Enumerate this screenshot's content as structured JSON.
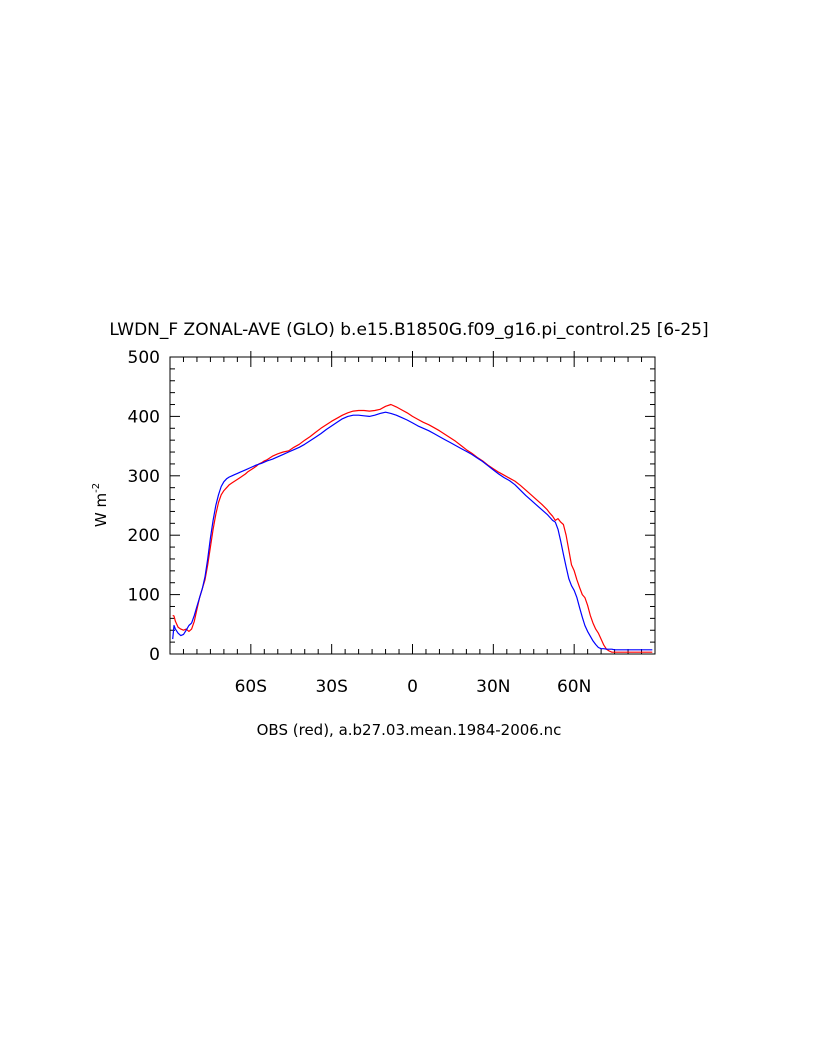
{
  "chart_data": {
    "type": "line",
    "title": "LWDN_F ZONAL-AVE (GLO) b.e15.B1850G.f09_g16.pi_control.25 [6-25]",
    "xlabel": "OBS (red), a.b27.03.mean.1984-2006.nc",
    "ylabel": "W m",
    "ylabel_sup": "-2",
    "xlim": [
      -90,
      90
    ],
    "ylim": [
      0,
      500
    ],
    "xticks": [
      {
        "value": -60,
        "label": "60S"
      },
      {
        "value": -30,
        "label": "30S"
      },
      {
        "value": 0,
        "label": "0"
      },
      {
        "value": 30,
        "label": "30N"
      },
      {
        "value": 60,
        "label": "60N"
      }
    ],
    "yticks": [
      {
        "value": 0,
        "label": "0"
      },
      {
        "value": 100,
        "label": "100"
      },
      {
        "value": 200,
        "label": "200"
      },
      {
        "value": 300,
        "label": "300"
      },
      {
        "value": 400,
        "label": "400"
      },
      {
        "value": 500,
        "label": "500"
      }
    ],
    "series": [
      {
        "color": "#ff0000",
        "x": [
          -89,
          -88.5,
          -88,
          -87,
          -86,
          -85,
          -84,
          -83,
          -82,
          -81,
          -80,
          -79,
          -78,
          -77,
          -76,
          -75,
          -74,
          -73,
          -72,
          -71,
          -70,
          -69,
          -68,
          -67,
          -66,
          -65,
          -64,
          -63,
          -62,
          -61,
          -60,
          -59,
          -58,
          -57,
          -56,
          -55,
          -54,
          -53,
          -52,
          -50,
          -48,
          -46,
          -44,
          -42,
          -40,
          -38,
          -36,
          -34,
          -32,
          -30,
          -28,
          -26,
          -24,
          -22,
          -20,
          -18,
          -16,
          -14,
          -12,
          -10,
          -8,
          -6,
          -4,
          -2,
          0,
          2,
          4,
          6,
          8,
          10,
          12,
          14,
          16,
          18,
          20,
          22,
          24,
          26,
          28,
          30,
          32,
          34,
          36,
          38,
          40,
          42,
          44,
          46,
          48,
          50,
          51,
          52,
          53,
          54,
          55,
          56,
          57,
          58,
          59,
          60,
          61,
          62,
          63,
          64,
          65,
          66,
          67,
          68,
          69,
          70,
          71,
          72,
          73,
          74,
          75,
          76,
          77,
          78,
          79,
          80,
          81,
          82,
          83,
          84,
          85,
          86,
          87,
          88,
          89
        ],
        "y": [
          65,
          64,
          55,
          45,
          42,
          40,
          42,
          38,
          42,
          55,
          75,
          95,
          110,
          125,
          150,
          180,
          210,
          235,
          255,
          268,
          275,
          280,
          285,
          288,
          291,
          294,
          297,
          300,
          303,
          307,
          310,
          313,
          316,
          320,
          322,
          325,
          327,
          330,
          333,
          337,
          340,
          342,
          348,
          353,
          360,
          366,
          373,
          380,
          386,
          392,
          397,
          402,
          406,
          409,
          410,
          410,
          409,
          410,
          412,
          417,
          420,
          416,
          411,
          406,
          400,
          395,
          390,
          386,
          381,
          376,
          370,
          364,
          358,
          351,
          344,
          338,
          331,
          325,
          318,
          312,
          306,
          301,
          296,
          291,
          284,
          276,
          268,
          260,
          252,
          243,
          237,
          232,
          225,
          228,
          222,
          218,
          200,
          175,
          150,
          140,
          125,
          112,
          100,
          95,
          82,
          65,
          52,
          42,
          35,
          25,
          15,
          8,
          5,
          3,
          3,
          3,
          3,
          3,
          3,
          3,
          3,
          3,
          3,
          3,
          3,
          3,
          3,
          3,
          3
        ]
      },
      {
        "color": "#0000ff",
        "x": [
          -89,
          -88.5,
          -88,
          -87,
          -86,
          -85,
          -84,
          -83,
          -82,
          -81,
          -80,
          -79,
          -78,
          -77,
          -76,
          -75,
          -74,
          -73,
          -72,
          -71,
          -70,
          -69,
          -68,
          -67,
          -66,
          -65,
          -64,
          -62,
          -60,
          -58,
          -56,
          -54,
          -52,
          -50,
          -48,
          -46,
          -44,
          -42,
          -40,
          -38,
          -36,
          -34,
          -32,
          -30,
          -28,
          -26,
          -24,
          -22,
          -20,
          -18,
          -16,
          -14,
          -12,
          -10,
          -8,
          -6,
          -4,
          -2,
          0,
          2,
          4,
          6,
          8,
          10,
          12,
          14,
          16,
          18,
          20,
          22,
          24,
          26,
          28,
          30,
          32,
          34,
          36,
          38,
          40,
          42,
          44,
          46,
          48,
          50,
          51,
          52,
          53,
          54,
          55,
          56,
          57,
          58,
          59,
          60,
          61,
          62,
          63,
          64,
          65,
          66,
          67,
          68,
          69,
          70,
          71,
          72,
          73,
          74,
          75,
          76,
          77,
          78,
          79,
          80,
          81,
          82,
          83,
          84,
          85,
          86,
          87,
          88,
          89
        ],
        "y": [
          25,
          48,
          42,
          35,
          31,
          33,
          40,
          48,
          52,
          65,
          80,
          95,
          110,
          130,
          160,
          195,
          225,
          250,
          268,
          282,
          290,
          295,
          298,
          300,
          302,
          304,
          306,
          310,
          314,
          318,
          321,
          325,
          328,
          332,
          336,
          340,
          344,
          348,
          353,
          359,
          365,
          371,
          378,
          384,
          390,
          396,
          400,
          402,
          402,
          401,
          400,
          402,
          405,
          407,
          405,
          402,
          398,
          394,
          389,
          384,
          380,
          376,
          371,
          366,
          361,
          356,
          351,
          346,
          341,
          336,
          330,
          324,
          317,
          310,
          303,
          297,
          292,
          285,
          276,
          267,
          259,
          251,
          243,
          235,
          230,
          225,
          222,
          210,
          190,
          168,
          147,
          127,
          115,
          107,
          95,
          78,
          62,
          48,
          38,
          30,
          22,
          16,
          11,
          9,
          9,
          8,
          8,
          8,
          7,
          7,
          7,
          7,
          7,
          7,
          7,
          7,
          7,
          7,
          7,
          7,
          7,
          7,
          7
        ]
      }
    ]
  }
}
